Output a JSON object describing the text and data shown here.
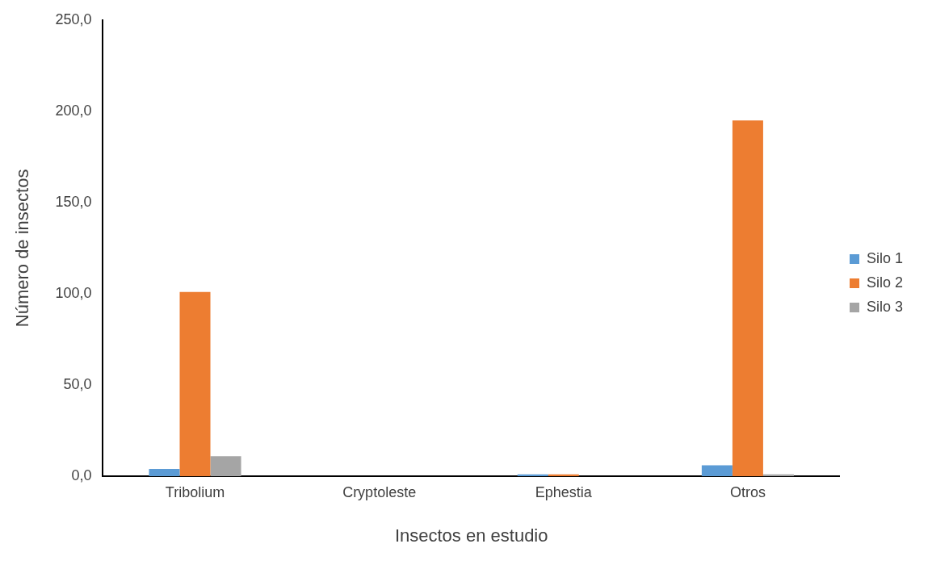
{
  "chart_data": {
    "type": "bar",
    "xlabel": "Insectos en estudio",
    "ylabel": "Número de insectos",
    "categories": [
      "Tribolium",
      "Cryptoleste",
      "Ephestia",
      "Otros"
    ],
    "series": [
      {
        "name": "Silo 1",
        "color": "#5b9bd5",
        "values": [
          4,
          0,
          1,
          6
        ]
      },
      {
        "name": "Silo 2",
        "color": "#ed7d31",
        "values": [
          101,
          0,
          1,
          195
        ]
      },
      {
        "name": "Silo 3",
        "color": "#a5a5a5",
        "values": [
          11,
          0,
          0,
          1
        ]
      }
    ],
    "ylim": [
      0,
      250
    ],
    "yticks": [
      {
        "value": 0,
        "label": "0,0"
      },
      {
        "value": 50,
        "label": "50,0"
      },
      {
        "value": 100,
        "label": "100,0"
      },
      {
        "value": 150,
        "label": "150,0"
      },
      {
        "value": 200,
        "label": "200,0"
      },
      {
        "value": 250,
        "label": "250,0"
      }
    ],
    "grid": false,
    "legend": "right"
  }
}
